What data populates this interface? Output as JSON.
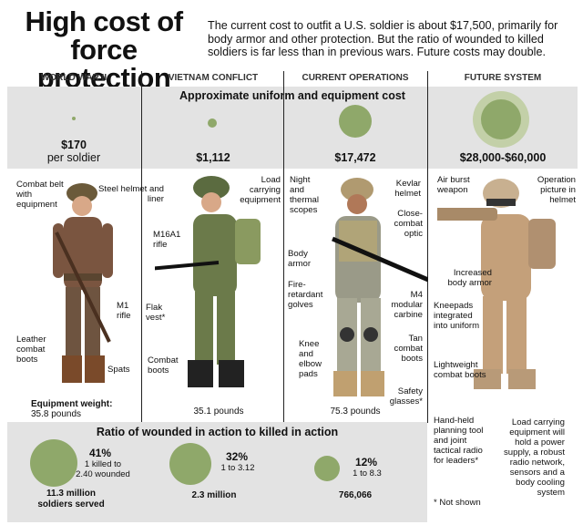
{
  "title_line1": "High cost of",
  "title_line2": "force protection",
  "intro": "The current cost to outfit a U.S. soldier is about $17,500, primarily for body armor and other protection. But the ratio of wounded to killed soldiers is far less than in previous wars. Future costs may double.",
  "columns": [
    "WORLD WAR II",
    "VIETNAM CONFLICT",
    "CURRENT OPERATIONS",
    "FUTURE SYSTEM"
  ],
  "cost_band_title": "Approximate uniform and equipment cost",
  "costs": [
    {
      "line1": "$170",
      "line2": "per soldier",
      "value": 170
    },
    {
      "line1": "$1,112",
      "value": 1112
    },
    {
      "line1": "$17,472",
      "value": 17472
    },
    {
      "line1": "$28,000-$60,000",
      "value": 60000
    }
  ],
  "labels": {
    "ww2": {
      "combat_belt": "Combat belt with equipment",
      "steel_helmet": "Steel helmet and liner",
      "m1_rifle": "M1 rifle",
      "leather_boots": "Leather combat boots",
      "spats": "Spats",
      "weight_label": "Equipment weight:",
      "weight": "35.8 pounds"
    },
    "vietnam": {
      "load_equipment": "Load carrying equipment",
      "m16": "M16A1 rifle",
      "flak_vest": "Flak vest*",
      "combat_boots": "Combat boots",
      "weight": "35.1 pounds"
    },
    "current": {
      "night_scopes": "Night and thermal scopes",
      "kevlar": "Kevlar helmet",
      "close_combat_optic": "Close-combat optic",
      "body_armor": "Body armor",
      "gloves": "Fire-retardant golves",
      "m4": "M4 modular carbine",
      "knee_pads": "Knee and elbow pads",
      "tan_boots": "Tan combat boots",
      "glasses": "Safety glasses*",
      "weight": "75.3 pounds"
    },
    "future": {
      "air_burst": "Air burst weapon",
      "operation_picture": "Operation picture in helmet",
      "body_armor": "Increased body armor",
      "kneepads": "Kneepads integrated into uniform",
      "boots": "Lightweight combat boots",
      "planning_tool": "Hand-held planning tool and joint tactical radio for leaders*",
      "load_equipment": "Load carrying equipment will hold a power supply, a robust radio network, sensors and a body cooling system",
      "not_shown": "* Not shown"
    }
  },
  "ratio_band_title": "Ratio of wounded in action to killed in action",
  "ratios": [
    {
      "pct": "41%",
      "ratio_line1": "1 killed to",
      "ratio_line2": "2.40 wounded",
      "served_line1": "11.3 million",
      "served_line2": "soldiers served",
      "percent": 41
    },
    {
      "pct": "32%",
      "ratio_line1": "1 to 3.12",
      "served_line1": "2.3 million",
      "percent": 32
    },
    {
      "pct": "12%",
      "ratio_line1": "1 to 8.3",
      "served_line1": "766,066",
      "percent": 12
    }
  ],
  "colors": {
    "circle": "#8fa86a",
    "circle_dark": "#5b7a3a",
    "band": "#e3e3e3"
  }
}
